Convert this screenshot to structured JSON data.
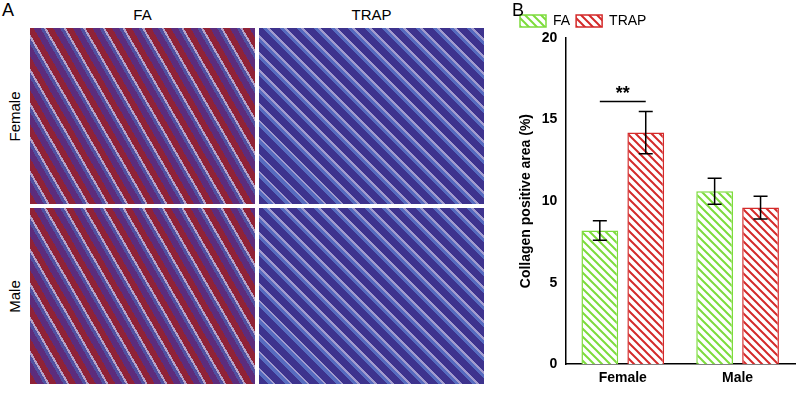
{
  "figure": {
    "panel_a": {
      "label": "A",
      "columns": [
        "FA",
        "TRAP"
      ],
      "rows": [
        "Female",
        "Male"
      ]
    },
    "panel_b_label": "B"
  },
  "chart_data": {
    "type": "bar",
    "y_label": "Collagen positive area (%)",
    "categories": [
      "Female",
      "Male"
    ],
    "series": [
      {
        "name": "FA",
        "color": "#7ddc3c",
        "values": [
          8.2,
          10.6
        ],
        "errors": [
          0.6,
          0.8
        ]
      },
      {
        "name": "TRAP",
        "color": "#d42a2a",
        "values": [
          14.2,
          9.6
        ],
        "errors": [
          1.3,
          0.7
        ]
      }
    ],
    "ylim": [
      0,
      20
    ],
    "yticks": [
      0,
      5,
      10,
      15,
      20
    ],
    "grid": false,
    "legend": "upper left",
    "annotations": [
      {
        "text": "**",
        "category": "Female"
      }
    ]
  }
}
